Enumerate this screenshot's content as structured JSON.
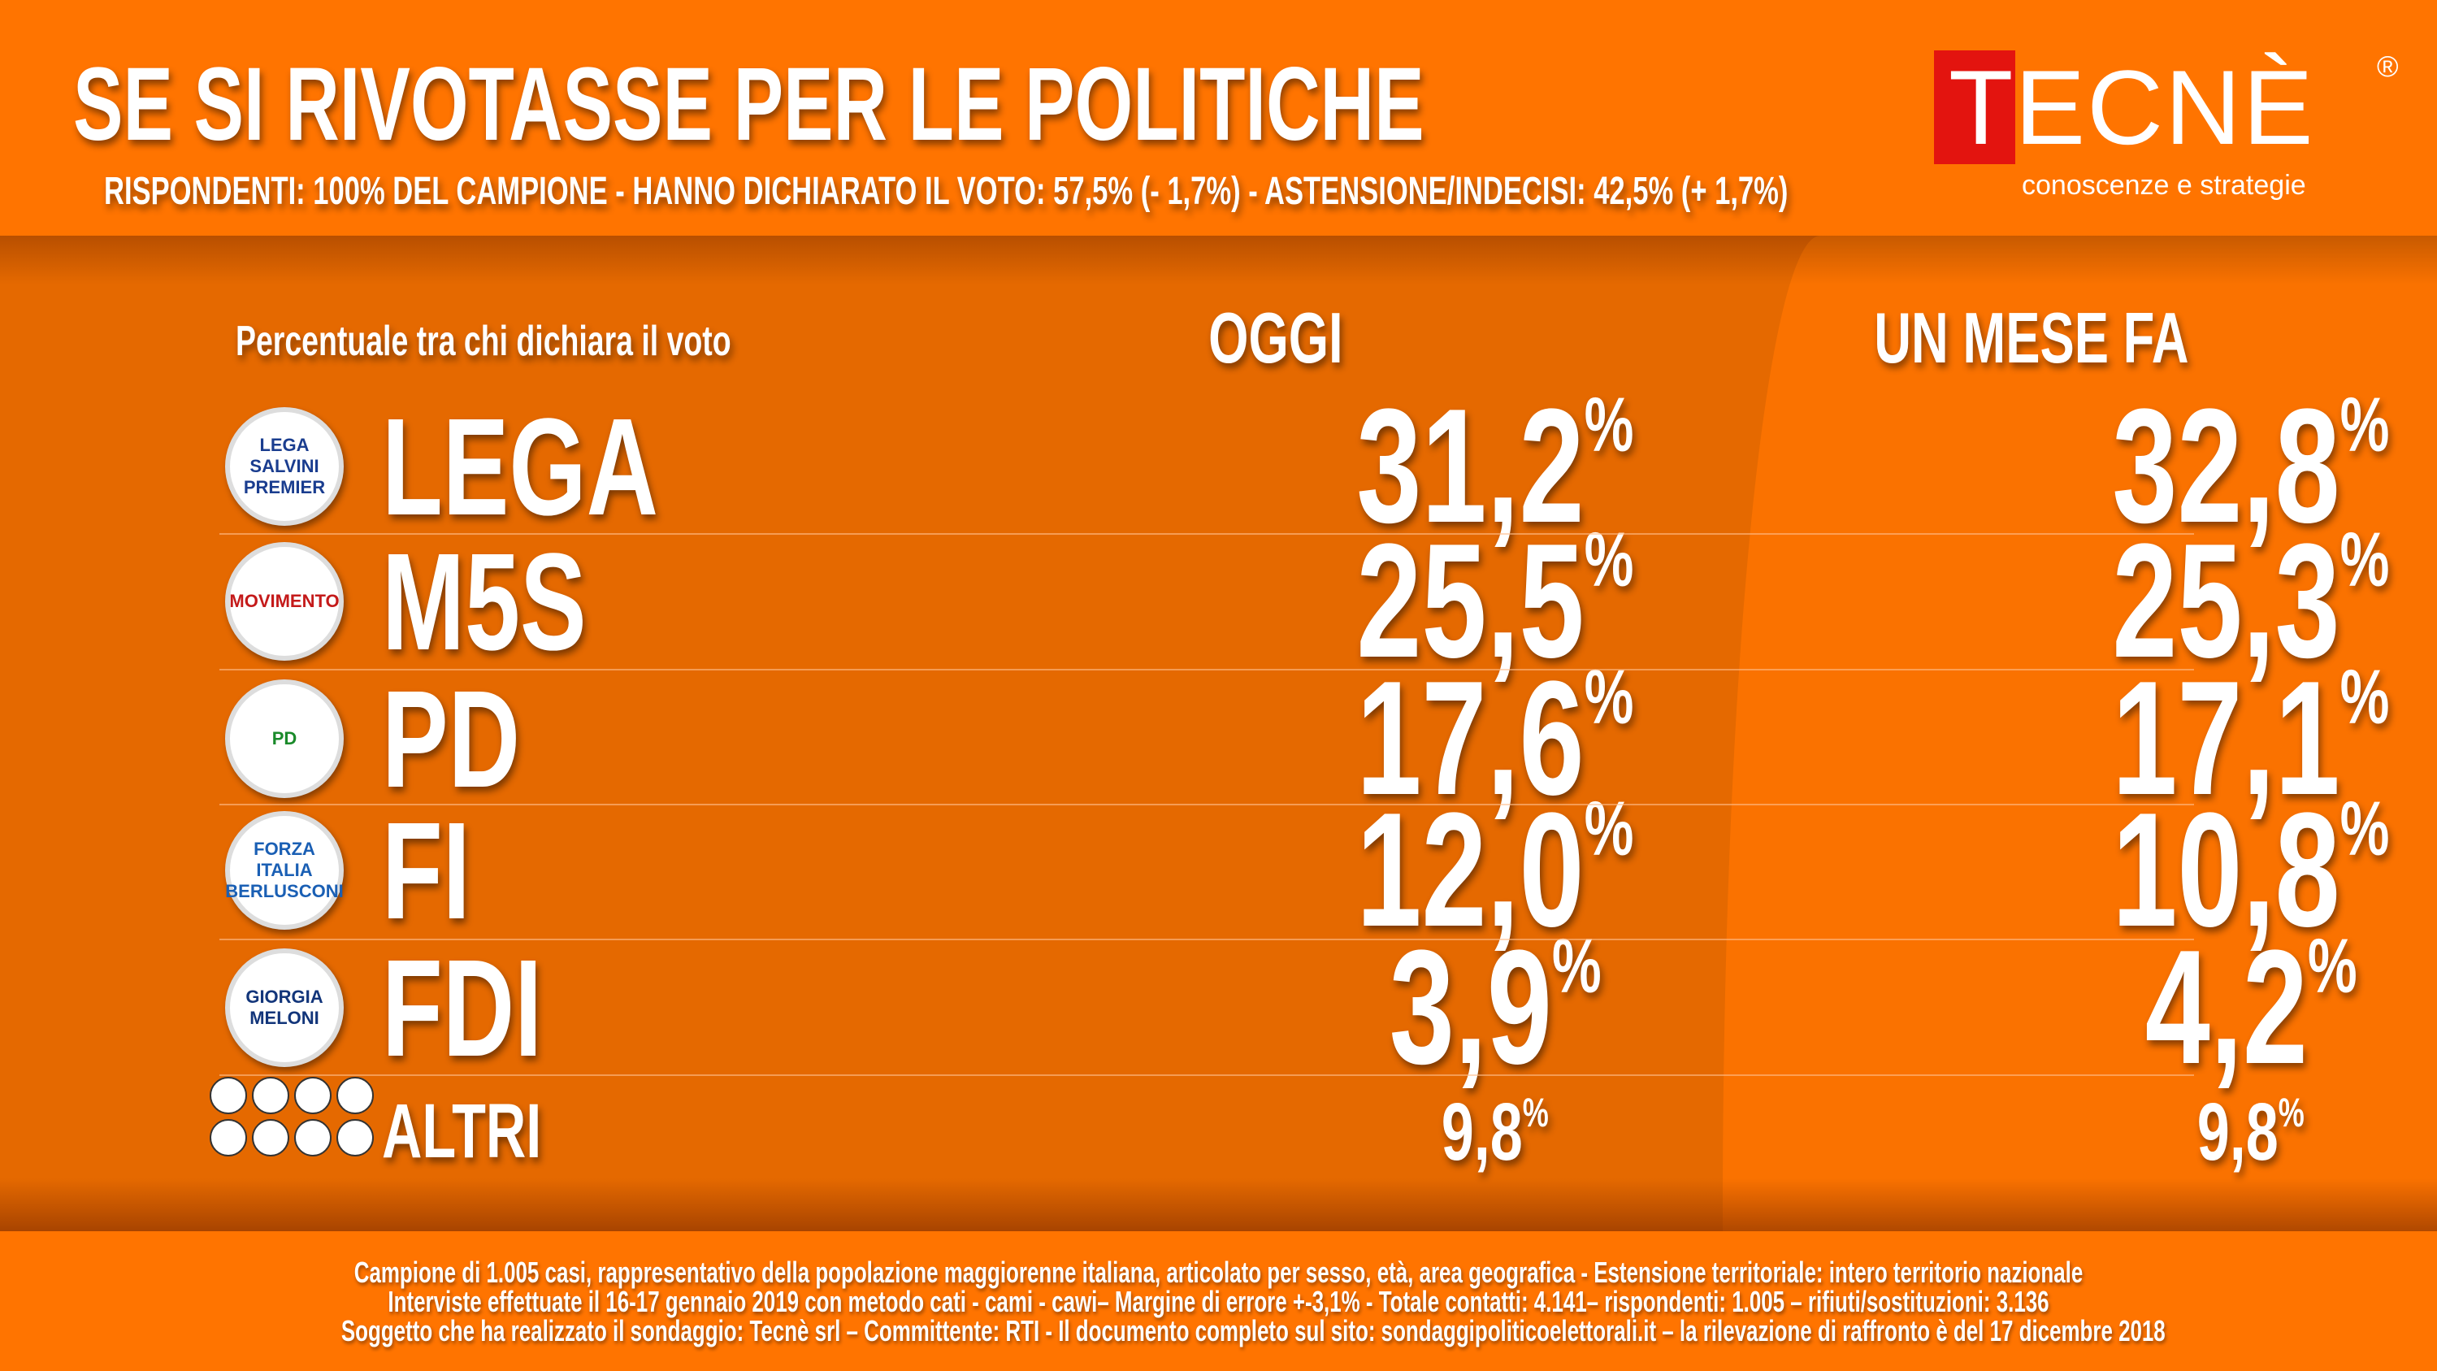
{
  "header": {
    "title": "SE SI RIVOTASSE PER LE POLITICHE",
    "subtitle": "RISPONDENTI: 100% DEL CAMPIONE - HANNO DICHIARATO IL VOTO: 57,5% (- 1,7%) - ASTENSIONE/INDECISI: 42,5% (+ 1,7%)"
  },
  "logo": {
    "t": "T",
    "rest": "ECNÈ",
    "reg": "®",
    "tagline": "conoscenze e strategie"
  },
  "table": {
    "label": "Percentuale tra chi dichiara il voto",
    "col_today": "OGGI",
    "col_month": "UN MESE FA",
    "rows": [
      {
        "party": "LEGA",
        "logo_text": "LEGA SALVINI PREMIER",
        "today": "31,2",
        "month": "32,8"
      },
      {
        "party": "M5S",
        "logo_text": "MOVIMENTO",
        "today": "25,5",
        "month": "25,3"
      },
      {
        "party": "PD",
        "logo_text": "PD",
        "today": "17,6",
        "month": "17,1"
      },
      {
        "party": "FI",
        "logo_text": "FORZA ITALIA BERLUSCONI",
        "today": "12,0",
        "month": "10,8"
      },
      {
        "party": "FDI",
        "logo_text": "GIORGIA MELONI",
        "today": "3,9",
        "month": "4,2"
      },
      {
        "party": "ALTRI",
        "today": "9,8",
        "month": "9,8"
      }
    ],
    "pct": "%"
  },
  "footer": {
    "lines": [
      "Campione di 1.005 casi, rappresentativo della popolazione maggiorenne italiana, articolato per sesso, età, area geografica - Estensione territoriale: intero territorio nazionale",
      "Interviste effettuate il 16-17 gennaio 2019 con metodo cati - cami - cawi– Margine di errore +-3,1% - Totale contatti: 4.141– rispondenti:  1.005 – rifiuti/sostituzioni: 3.136",
      "Soggetto che ha realizzato il sondaggio: Tecnè srl – Committente: RTI - Il documento completo sul sito: sondaggipoliticoelettorali.it – la rilevazione di raffronto è del 17 dicembre 2018"
    ]
  }
}
